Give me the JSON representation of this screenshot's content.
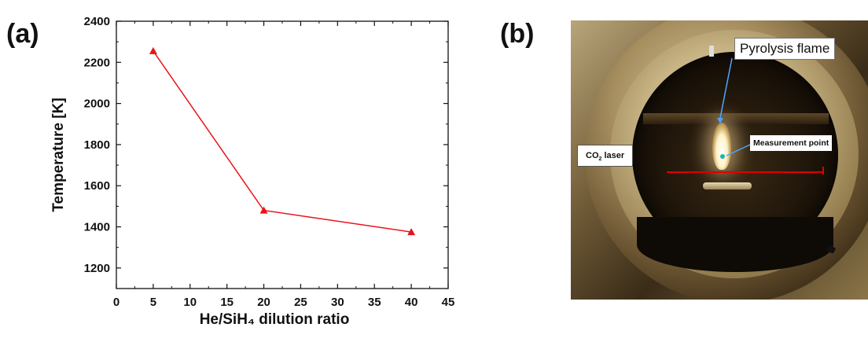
{
  "panel_a_label": "(a)",
  "panel_b_label": "(b)",
  "chart_data": {
    "type": "line",
    "title": "",
    "xlabel": "He/SiH₄ dilution ratio",
    "ylabel": "Temperature [K]",
    "xlim": [
      0,
      45
    ],
    "ylim": [
      1100,
      2400
    ],
    "x_ticks": [
      "0",
      "5",
      "10",
      "15",
      "20",
      "25",
      "30",
      "35",
      "40",
      "45"
    ],
    "y_ticks": [
      "1200",
      "1400",
      "1600",
      "1800",
      "2000",
      "2200",
      "2400"
    ],
    "grid": false,
    "series": [
      {
        "color": "#e8141b",
        "marker": "triangle",
        "x": [
          5,
          20,
          40
        ],
        "y": [
          2255,
          1480,
          1375
        ]
      }
    ]
  },
  "photo": {
    "callouts": {
      "flame": "Pyrolysis flame",
      "measurement": "Measurement point",
      "laser_main": "CO",
      "laser_sub": "2",
      "laser_tail": " laser"
    },
    "colors": {
      "laser": "#e00000",
      "pointer_arrow": "#4da6ff",
      "measurement_dot": "#1fb7a7"
    }
  }
}
